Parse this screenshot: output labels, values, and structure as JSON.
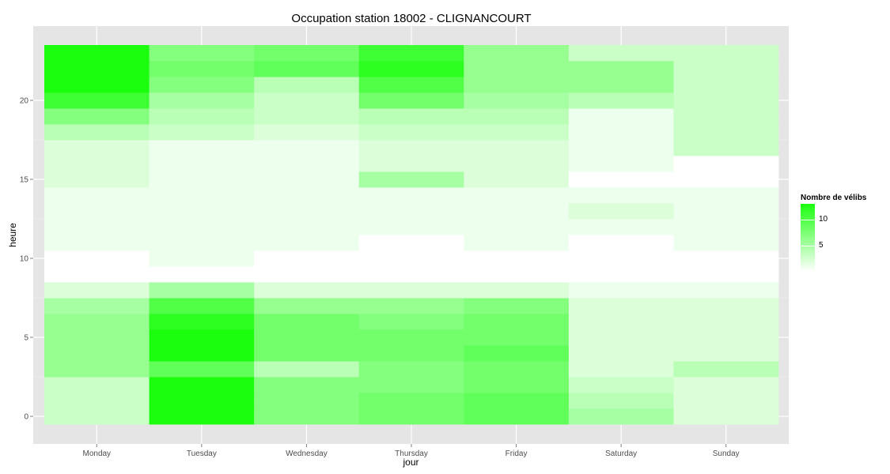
{
  "chart_data": {
    "type": "heatmap",
    "title": "Occupation station 18002 - CLIGNANCOURT",
    "xlabel": "jour",
    "ylabel": "heure",
    "x_categories": [
      "Monday",
      "Tuesday",
      "Wednesday",
      "Thursday",
      "Friday",
      "Saturday",
      "Sunday"
    ],
    "y_values": [
      0,
      1,
      2,
      3,
      4,
      5,
      6,
      7,
      8,
      9,
      10,
      11,
      12,
      13,
      14,
      15,
      16,
      17,
      18,
      19,
      20,
      21,
      22,
      23
    ],
    "y_ticks": [
      0,
      5,
      10,
      15,
      20
    ],
    "ylim": [
      -0.5,
      23.5
    ],
    "values": [
      [
        3,
        13,
        7,
        8,
        9,
        5,
        2
      ],
      [
        3,
        13,
        7,
        8,
        9,
        4,
        2
      ],
      [
        3,
        13,
        7,
        7,
        8,
        3,
        2
      ],
      [
        6,
        9,
        4,
        7,
        8,
        2,
        4
      ],
      [
        6,
        13,
        8,
        8,
        9,
        2,
        2
      ],
      [
        6,
        13,
        8,
        8,
        8,
        2,
        2
      ],
      [
        6,
        12,
        8,
        7,
        8,
        2,
        2
      ],
      [
        5,
        10,
        6,
        6,
        7,
        2,
        2
      ],
      [
        2,
        5,
        2,
        2,
        2,
        1,
        1
      ],
      [
        0,
        0,
        0,
        0,
        0,
        0,
        0
      ],
      [
        0,
        1,
        0,
        0,
        0,
        0,
        0
      ],
      [
        1,
        1,
        1,
        0,
        1,
        0,
        1
      ],
      [
        1,
        1,
        1,
        1,
        1,
        1,
        1
      ],
      [
        1,
        1,
        1,
        1,
        1,
        2,
        1
      ],
      [
        1,
        1,
        1,
        1,
        1,
        1,
        1
      ],
      [
        2,
        1,
        1,
        5,
        2,
        0,
        0
      ],
      [
        2,
        1,
        1,
        2,
        2,
        1,
        0
      ],
      [
        2,
        1,
        1,
        2,
        2,
        1,
        3
      ],
      [
        4,
        3,
        2,
        3,
        3,
        1,
        3
      ],
      [
        7,
        4,
        3,
        4,
        4,
        1,
        3
      ],
      [
        11,
        5,
        3,
        8,
        5,
        4,
        3
      ],
      [
        13,
        7,
        4,
        10,
        6,
        6,
        3
      ],
      [
        13,
        8,
        9,
        12,
        6,
        6,
        3
      ],
      [
        13,
        7,
        8,
        11,
        6,
        3,
        3
      ]
    ],
    "color_scale": {
      "low": "#ffffff",
      "high": "#1bff0f",
      "min": 0,
      "max": 13
    },
    "legend": {
      "title": "Nombre de vélibs",
      "labels": [
        "10",
        "5"
      ],
      "label_values": [
        10,
        5
      ],
      "position": "right"
    },
    "grid": true
  }
}
